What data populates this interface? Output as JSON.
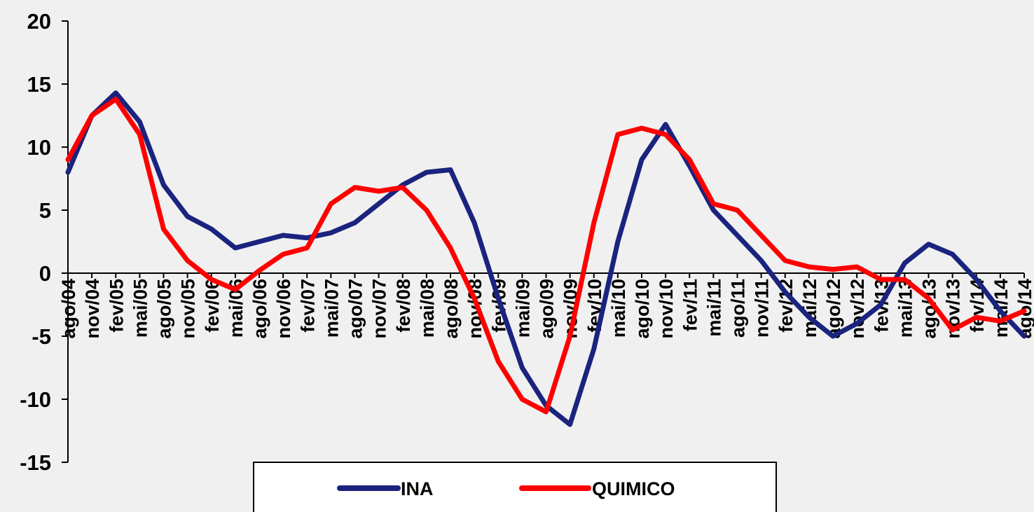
{
  "chart_data": {
    "type": "line",
    "title": "",
    "xlabel": "",
    "ylabel": "",
    "ylim": [
      -15,
      20
    ],
    "yticks": [
      20,
      15,
      10,
      5,
      0,
      -5,
      -10,
      -15
    ],
    "grid": false,
    "legend_position": "bottom-center",
    "x": [
      "ago/04",
      "nov/04",
      "fev/05",
      "mai/05",
      "ago/05",
      "nov/05",
      "fev/06",
      "mai/06",
      "ago/06",
      "nov/06",
      "fev/07",
      "mai/07",
      "ago/07",
      "nov/07",
      "fev/08",
      "mai/08",
      "ago/08",
      "nov/08",
      "fev/09",
      "mai/09",
      "ago/09",
      "nov/09",
      "fev/10",
      "mai/10",
      "ago/10",
      "nov/10",
      "fev/11",
      "mai/11",
      "ago/11",
      "nov/11",
      "fev/12",
      "mai/12",
      "ago/12",
      "nov/12",
      "fev/13",
      "mai/13",
      "ago/13",
      "nov/13",
      "fev/14",
      "mai/14",
      "ago/14"
    ],
    "series": [
      {
        "name": "INA",
        "color": "#1a237e",
        "values": [
          8.0,
          12.5,
          14.3,
          12.0,
          7.0,
          4.5,
          3.5,
          2.0,
          2.5,
          3.0,
          2.8,
          3.2,
          4.0,
          5.5,
          7.0,
          8.0,
          8.2,
          4.0,
          -2.0,
          -7.5,
          -10.5,
          -12.0,
          -6.0,
          2.5,
          9.0,
          11.8,
          8.5,
          5.0,
          3.0,
          1.0,
          -1.5,
          -3.5,
          -5.0,
          -4.0,
          -2.5,
          0.8,
          2.3,
          1.5,
          -0.5,
          -3.0,
          -5.0
        ]
      },
      {
        "name": "QUIMICO",
        "color": "#ff0000",
        "values": [
          9.0,
          12.5,
          13.8,
          11.0,
          3.5,
          1.0,
          -0.5,
          -1.3,
          0.2,
          1.5,
          2.0,
          5.5,
          6.8,
          6.5,
          6.8,
          5.0,
          2.0,
          -2.0,
          -7.0,
          -10.0,
          -11.0,
          -5.0,
          4.0,
          11.0,
          11.5,
          11.0,
          9.0,
          5.5,
          5.0,
          3.0,
          1.0,
          0.5,
          0.3,
          0.5,
          -0.5,
          -0.5,
          -2.0,
          -4.5,
          -3.5,
          -3.8,
          -3.0
        ]
      }
    ]
  }
}
